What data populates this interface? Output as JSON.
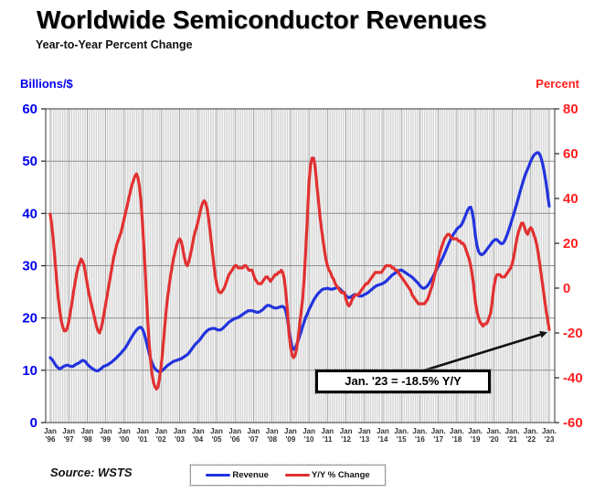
{
  "header": {
    "title": "Worldwide Semiconductor Revenues",
    "subtitle": "Year-to-Year Percent Change"
  },
  "axes": {
    "left": {
      "title": "Billions/$",
      "color": "#0000ee"
    },
    "right": {
      "title": "Percent",
      "color": "#ff1f1f"
    }
  },
  "legend": {
    "items": [
      {
        "label": "Revenue",
        "color": "#2233dd"
      },
      {
        "label": "Y/Y % Change",
        "color": "#e23030"
      }
    ]
  },
  "annotation": {
    "text": "Jan. '23 = -18.5% Y/Y"
  },
  "source": {
    "text": "Source: WSTS"
  },
  "chart_data": {
    "type": "line",
    "title": "Worldwide Semiconductor Revenues",
    "subtitle": "Year-to-Year Percent Change",
    "x_unit": "month",
    "x_start": "Jan 1996",
    "x_end": "Jan 2023",
    "grid": "monthly-vertical and horizontal at left-axis ticks",
    "left_axis": {
      "title": "Billions/$",
      "min": 0,
      "max": 60,
      "ticks": [
        0,
        10,
        20,
        30,
        40,
        50,
        60
      ],
      "color": "#0000ee"
    },
    "right_axis": {
      "title": "Percent",
      "min": -60,
      "max": 80,
      "ticks": [
        -60,
        -40,
        -20,
        0,
        20,
        40,
        60,
        80
      ],
      "color": "#ff1f1f"
    },
    "x_tick_labels": [
      "Jan '96",
      "Jan '97",
      "Jan '98",
      "Jan '99",
      "Jan '00",
      "Jan '01",
      "Jan '02",
      "Jan '03",
      "Jan '04",
      "Jan '05",
      "Jan '06",
      "Jan '07",
      "Jan '08",
      "Jan '09",
      "Jan '10",
      "Jan '11",
      "Jan '12",
      "Jan '13",
      "Jan '14",
      "Jan. '15",
      "Jan. '16",
      "Jan. '17",
      "Jan. '18",
      "Jan. '19",
      "Jan. '20",
      "Jan. '21",
      "Jan. '22",
      "Jan. '23"
    ],
    "annotation": {
      "text": "Jan. '23 = -18.5% Y/Y",
      "points_to": {
        "series": "Y/Y % Change",
        "x": "Jan 2023",
        "value": -18.5
      }
    },
    "series": [
      {
        "name": "Revenue",
        "axis": "left",
        "color": "#2233dd",
        "unit": "billions USD per month",
        "values": [
          12.4,
          12.1,
          11.7,
          11.2,
          10.8,
          10.5,
          10.3,
          10.4,
          10.6,
          10.8,
          10.9,
          11.0,
          10.9,
          10.8,
          10.7,
          10.8,
          11.0,
          11.2,
          11.3,
          11.5,
          11.7,
          11.9,
          11.8,
          11.6,
          11.2,
          10.9,
          10.6,
          10.4,
          10.2,
          10.0,
          9.9,
          9.9,
          10.1,
          10.3,
          10.6,
          10.8,
          10.9,
          11.0,
          11.2,
          11.4,
          11.6,
          11.9,
          12.1,
          12.4,
          12.7,
          13.0,
          13.3,
          13.7,
          14.0,
          14.4,
          14.9,
          15.4,
          15.9,
          16.4,
          16.9,
          17.3,
          17.7,
          18.0,
          18.2,
          18.2,
          17.8,
          17.0,
          15.9,
          14.7,
          13.5,
          12.4,
          11.5,
          10.8,
          10.3,
          10.0,
          9.8,
          9.7,
          9.8,
          10.0,
          10.3,
          10.6,
          10.9,
          11.1,
          11.3,
          11.5,
          11.7,
          11.8,
          11.9,
          12.0,
          12.1,
          12.2,
          12.4,
          12.6,
          12.8,
          13.0,
          13.3,
          13.7,
          14.1,
          14.5,
          14.9,
          15.2,
          15.5,
          15.8,
          16.2,
          16.6,
          17.0,
          17.3,
          17.6,
          17.8,
          17.9,
          18.0,
          18.0,
          18.0,
          17.8,
          17.7,
          17.7,
          17.8,
          18.0,
          18.3,
          18.6,
          18.9,
          19.2,
          19.4,
          19.6,
          19.8,
          19.9,
          20.0,
          20.1,
          20.3,
          20.5,
          20.7,
          20.9,
          21.1,
          21.3,
          21.4,
          21.4,
          21.4,
          21.3,
          21.2,
          21.1,
          21.1,
          21.2,
          21.4,
          21.6,
          21.9,
          22.2,
          22.4,
          22.4,
          22.3,
          22.1,
          22.0,
          21.9,
          21.9,
          22.0,
          22.1,
          22.2,
          22.2,
          22.0,
          21.3,
          19.8,
          17.7,
          16.0,
          14.4,
          14.0,
          14.3,
          14.9,
          15.7,
          16.6,
          17.5,
          18.5,
          19.4,
          20.2,
          20.8,
          21.6,
          22.2,
          22.8,
          23.4,
          23.9,
          24.3,
          24.7,
          25.0,
          25.3,
          25.5,
          25.6,
          25.6,
          25.7,
          25.6,
          25.5,
          25.5,
          25.6,
          25.7,
          25.8,
          25.8,
          25.6,
          25.3,
          25.0,
          24.7,
          24.3,
          24.0,
          23.9,
          24.0,
          24.2,
          24.4,
          24.5,
          24.4,
          24.3,
          24.2,
          24.2,
          24.3,
          24.5,
          24.6,
          24.8,
          25.0,
          25.3,
          25.5,
          25.8,
          26.0,
          26.2,
          26.3,
          26.4,
          26.5,
          26.6,
          26.8,
          27.0,
          27.3,
          27.6,
          27.9,
          28.2,
          28.4,
          28.6,
          28.8,
          29.0,
          29.1,
          29.2,
          29.0,
          28.8,
          28.6,
          28.4,
          28.2,
          28.0,
          27.8,
          27.5,
          27.2,
          26.9,
          26.6,
          26.2,
          25.9,
          25.7,
          25.7,
          25.9,
          26.2,
          26.6,
          27.1,
          27.6,
          28.2,
          28.8,
          29.4,
          29.9,
          30.4,
          31.0,
          31.6,
          32.3,
          33.0,
          33.7,
          34.4,
          35.0,
          35.6,
          36.1,
          36.5,
          37.0,
          37.3,
          37.5,
          37.8,
          38.4,
          39.1,
          39.9,
          40.6,
          41.1,
          41.2,
          40.3,
          38.6,
          35.8,
          34.0,
          32.8,
          32.3,
          32.1,
          32.2,
          32.5,
          32.9,
          33.3,
          33.7,
          34.1,
          34.5,
          34.8,
          35.0,
          35.0,
          34.7,
          34.4,
          34.2,
          34.3,
          34.7,
          35.4,
          36.2,
          37.1,
          38.0,
          39.0,
          39.9,
          40.9,
          41.9,
          43.0,
          44.1,
          45.1,
          46.1,
          47.0,
          47.8,
          48.5,
          49.2,
          50.0,
          50.6,
          51.1,
          51.4,
          51.6,
          51.6,
          51.2,
          50.3,
          49.1,
          47.6,
          45.8,
          43.6,
          41.4
        ]
      },
      {
        "name": "Y/Y % Change",
        "axis": "right",
        "color": "#e23030",
        "unit": "percent",
        "values": [
          33,
          28,
          21,
          13,
          5,
          -3,
          -9,
          -14,
          -17,
          -19,
          -19,
          -18,
          -15,
          -11,
          -7,
          -2,
          2,
          6,
          9,
          11,
          13,
          12,
          10,
          6,
          2,
          -2,
          -5,
          -8,
          -11,
          -14,
          -17,
          -19,
          -20,
          -18,
          -15,
          -11,
          -7,
          -3,
          1,
          5,
          9,
          13,
          16,
          19,
          21,
          23,
          25,
          28,
          31,
          34,
          37,
          40,
          43,
          46,
          48,
          50,
          51,
          49,
          45,
          38,
          28,
          16,
          3,
          -11,
          -23,
          -31,
          -38,
          -42,
          -44,
          -45,
          -44,
          -40,
          -35,
          -28,
          -20,
          -12,
          -5,
          0,
          5,
          9,
          13,
          16,
          19,
          21,
          22,
          21,
          18,
          14,
          11,
          10,
          12,
          15,
          18,
          22,
          25,
          27,
          30,
          33,
          36,
          38,
          39,
          38,
          35,
          30,
          24,
          18,
          12,
          6,
          2,
          -1,
          -2,
          -2,
          -1,
          0,
          2,
          4,
          6,
          7,
          8,
          9,
          10,
          10,
          9,
          9,
          9,
          9,
          10,
          10,
          9,
          8,
          8,
          8,
          6,
          4,
          3,
          2,
          2,
          2,
          3,
          4,
          5,
          5,
          4,
          3,
          4,
          5,
          6,
          6,
          7,
          7,
          8,
          7,
          4,
          -2,
          -10,
          -20,
          -26,
          -30,
          -31,
          -30,
          -27,
          -22,
          -16,
          -10,
          -4,
          6,
          18,
          32,
          47,
          55,
          58,
          58,
          54,
          47,
          40,
          33,
          27,
          22,
          17,
          13,
          10,
          8,
          7,
          5,
          4,
          2,
          1,
          0,
          -1,
          -2,
          -2,
          -2,
          -5,
          -7,
          -8,
          -7,
          -5,
          -4,
          -3,
          -3,
          -3,
          -2,
          -1,
          0,
          1,
          2,
          2,
          3,
          4,
          5,
          6,
          7,
          7,
          7,
          7,
          7,
          8,
          9,
          10,
          10,
          10,
          10,
          9,
          9,
          8,
          8,
          7,
          6,
          5,
          4,
          3,
          2,
          1,
          0,
          -1,
          -3,
          -4,
          -5,
          -6,
          -7,
          -7,
          -7,
          -7,
          -7,
          -6,
          -5,
          -3,
          -1,
          1,
          4,
          7,
          10,
          13,
          16,
          18,
          20,
          22,
          23,
          24,
          24,
          23,
          22,
          22,
          22,
          22,
          21,
          21,
          20,
          20,
          19,
          17,
          15,
          13,
          10,
          6,
          1,
          -6,
          -10,
          -13,
          -15,
          -16,
          -17,
          -16,
          -16,
          -15,
          -13,
          -11,
          -6,
          0,
          4,
          6,
          6,
          6,
          5,
          5,
          5,
          6,
          7,
          8,
          9,
          11,
          14,
          18,
          22,
          25,
          27,
          29,
          29,
          27,
          25,
          24,
          26,
          27,
          26,
          24,
          22,
          19,
          15,
          10,
          5,
          0,
          -5,
          -10,
          -14,
          -18.5
        ]
      }
    ]
  }
}
